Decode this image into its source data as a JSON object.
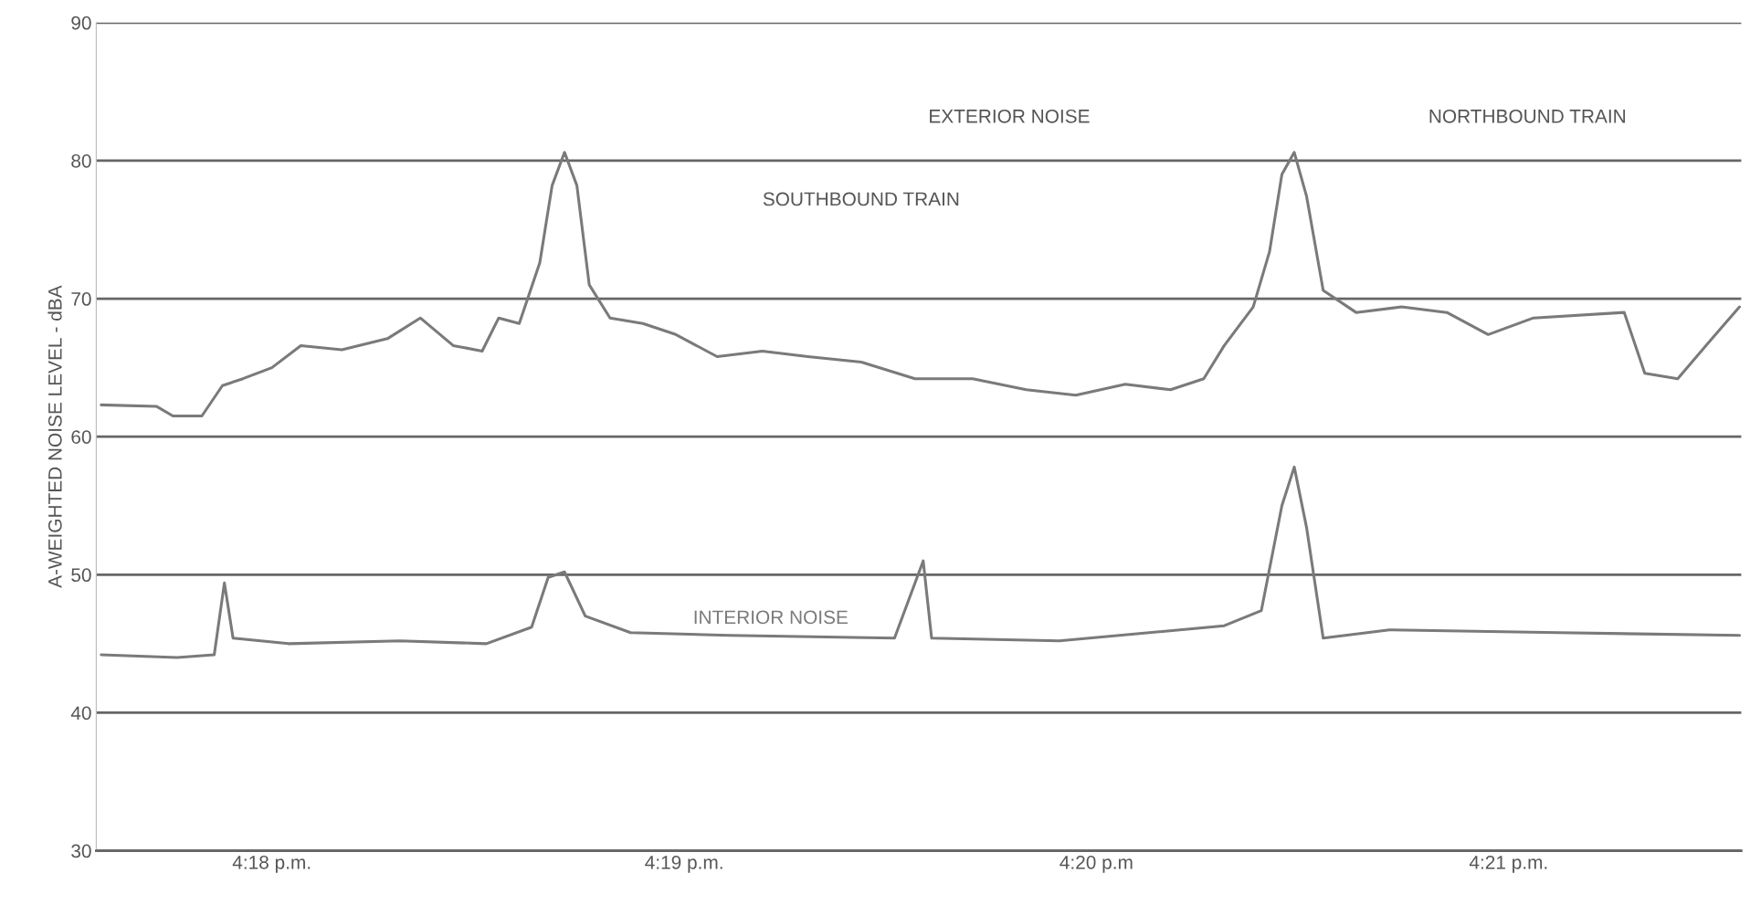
{
  "chart_data": {
    "type": "line",
    "ylabel": "A-WEIGHTED NOISE LEVEL - dBA",
    "xlim": [
      16.2929,
      16.3594
    ],
    "ylim": [
      30,
      90
    ],
    "xticks": [
      {
        "value": 16.3,
        "label": "4:18 p.m."
      },
      {
        "value": 16.31667,
        "label": "4:19 p.m."
      },
      {
        "value": 16.33333,
        "label": "4:20 p.m"
      },
      {
        "value": 16.35,
        "label": "4:21 p.m."
      }
    ],
    "yticks": [
      30,
      40,
      50,
      60,
      70,
      80,
      90
    ],
    "grid": "y",
    "legend": false,
    "marker": "none",
    "line_style": "solid",
    "series": [
      {
        "color": "#7a7a7a",
        "x": [
          16.2931,
          16.29533,
          16.296,
          16.29717,
          16.298,
          16.29883,
          16.3,
          16.30117,
          16.30283,
          16.30467,
          16.306,
          16.30733,
          16.3085,
          16.30917,
          16.31,
          16.31083,
          16.31133,
          16.31183,
          16.31233,
          16.31283,
          16.31367,
          16.315,
          16.31633,
          16.318,
          16.31983,
          16.32167,
          16.32383,
          16.326,
          16.32833,
          16.3305,
          16.3325,
          16.3345,
          16.33633,
          16.33767,
          16.3385,
          16.33967,
          16.34033,
          16.34083,
          16.34133,
          16.34183,
          16.3425,
          16.34383,
          16.34567,
          16.3475,
          16.34917,
          16.351,
          16.35467,
          16.3555,
          16.35683,
          16.35817,
          16.35933
        ],
        "values": [
          62.3,
          62.2,
          61.5,
          61.5,
          63.7,
          64.2,
          65,
          66.6,
          66.3,
          67.1,
          68.6,
          66.6,
          66.2,
          68.6,
          68.2,
          72.6,
          78.2,
          80.6,
          78.2,
          71,
          68.6,
          68.2,
          67.4,
          65.8,
          66.2,
          65.8,
          65.4,
          64.2,
          64.2,
          63.4,
          63,
          63.8,
          63.4,
          64.2,
          66.6,
          69.4,
          73.4,
          79,
          80.6,
          77.4,
          70.6,
          69,
          69.4,
          69,
          67.4,
          68.6,
          69,
          64.6,
          64.2,
          67,
          69.4
        ]
      },
      {
        "name": "INTERIOR NOISE",
        "color": "#7a7a7a",
        "x": [
          16.2931,
          16.29617,
          16.29767,
          16.29808,
          16.29843,
          16.30067,
          16.30517,
          16.30867,
          16.3105,
          16.31117,
          16.31183,
          16.31267,
          16.3145,
          16.3185,
          16.32517,
          16.32633,
          16.32667,
          16.33183,
          16.3385,
          16.34,
          16.34083,
          16.34133,
          16.34183,
          16.3425,
          16.34517,
          16.352,
          16.35933
        ],
        "values": [
          44.2,
          44,
          44.2,
          49.4,
          45.4,
          45,
          45.2,
          45,
          46.2,
          49.8,
          50.2,
          47,
          45.8,
          45.6,
          45.4,
          51,
          45.4,
          45.2,
          46.3,
          47.4,
          55,
          57.8,
          53.4,
          45.4,
          46,
          45.8,
          45.6
        ]
      }
    ],
    "annotations": [
      "EXTERIOR NOISE",
      "NORTHBOUND TRAIN",
      "SOUTHBOUND TRAIN"
    ]
  }
}
